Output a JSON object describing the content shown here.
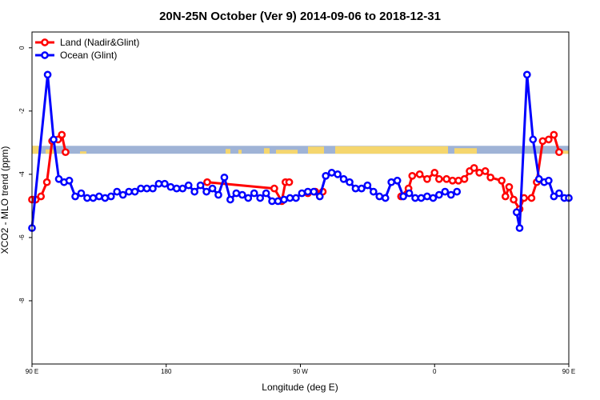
{
  "chart_data": {
    "type": "line",
    "title": "20N-25N October (Ver 9)   2014-09-06 to 2018-12-31",
    "xlabel": "Longitude (deg E)",
    "ylabel": "XCO2 - MLO trend (ppm)",
    "xlim": [
      90,
      450
    ],
    "ylim": [
      -10,
      0.5
    ],
    "x_ticks": [
      {
        "value": 90,
        "label": "90 E"
      },
      {
        "value": 180,
        "label": "180"
      },
      {
        "value": 270,
        "label": "90 W"
      },
      {
        "value": 360,
        "label": "0"
      },
      {
        "value": 450,
        "label": "90 E"
      },
      {
        "value": 540,
        "label": "180"
      }
    ],
    "y_ticks": [
      {
        "value": 0,
        "label": "0"
      },
      {
        "value": -2,
        "label": "-2"
      },
      {
        "value": -4,
        "label": "-4"
      },
      {
        "value": -6,
        "label": "-6"
      },
      {
        "value": -8,
        "label": "-8"
      }
    ],
    "legend_position": "top-left",
    "grid": false,
    "band": {
      "y_from": -3.1,
      "y_to": -3.35,
      "ocean_color": "#9fb3d6",
      "land_color": "#f5d66e"
    },
    "series": [
      {
        "name": "Land (Nadir&Glint)",
        "color": "#ff0000",
        "segments": [
          [
            [
              90,
              -4.8
            ],
            [
              92.5,
              -4.8
            ],
            [
              96,
              -4.7
            ],
            [
              100,
              -4.25
            ],
            [
              103.5,
              -2.95
            ],
            [
              107.5,
              -2.9
            ],
            [
              110,
              -2.75
            ],
            [
              112.5,
              -3.3
            ]
          ],
          [
            [
              207.5,
              -4.25
            ],
            [
              252.5,
              -4.45
            ],
            [
              257.5,
              -4.85
            ],
            [
              260,
              -4.25
            ],
            [
              262.5,
              -4.25
            ]
          ],
          [
            [
              275,
              -4.6
            ],
            [
              280,
              -4.55
            ],
            [
              285,
              -4.55
            ]
          ],
          [
            [
              337.5,
              -4.7
            ],
            [
              342.5,
              -4.45
            ],
            [
              345,
              -4.05
            ],
            [
              350,
              -4.0
            ],
            [
              355,
              -4.15
            ],
            [
              360,
              -3.95
            ],
            [
              363,
              -4.15
            ],
            [
              368,
              -4.15
            ],
            [
              372,
              -4.2
            ],
            [
              376,
              -4.2
            ],
            [
              380,
              -4.15
            ],
            [
              383.5,
              -3.9
            ],
            [
              386.5,
              -3.8
            ],
            [
              390,
              -3.95
            ],
            [
              394,
              -3.9
            ],
            [
              397.5,
              -4.1
            ],
            [
              405,
              -4.2
            ],
            [
              407.5,
              -4.7
            ],
            [
              410,
              -4.4
            ],
            [
              413,
              -4.8
            ],
            [
              417,
              -5.1
            ],
            [
              420,
              -4.75
            ],
            [
              425,
              -4.75
            ],
            [
              428.5,
              -4.25
            ],
            [
              432.5,
              -2.95
            ],
            [
              436.5,
              -2.9
            ],
            [
              440,
              -2.75
            ],
            [
              443.5,
              -3.3
            ]
          ]
        ]
      },
      {
        "name": "Ocean (Glint)",
        "color": "#0000ff",
        "segments": [
          [
            [
              90,
              -5.7
            ],
            [
              100.5,
              -0.85
            ],
            [
              104.5,
              -2.9
            ],
            [
              108,
              -4.15
            ],
            [
              111.5,
              -4.25
            ],
            [
              115,
              -4.2
            ],
            [
              119,
              -4.7
            ],
            [
              123,
              -4.6
            ],
            [
              127,
              -4.75
            ],
            [
              131,
              -4.75
            ],
            [
              135,
              -4.7
            ],
            [
              139,
              -4.75
            ],
            [
              143,
              -4.7
            ],
            [
              147,
              -4.55
            ],
            [
              151,
              -4.65
            ],
            [
              155,
              -4.55
            ],
            [
              159,
              -4.55
            ],
            [
              163,
              -4.45
            ],
            [
              167,
              -4.45
            ],
            [
              171,
              -4.45
            ],
            [
              175,
              -4.3
            ],
            [
              179,
              -4.3
            ],
            [
              183,
              -4.4
            ],
            [
              187,
              -4.45
            ],
            [
              191,
              -4.45
            ],
            [
              195,
              -4.35
            ],
            [
              199,
              -4.55
            ],
            [
              203,
              -4.35
            ],
            [
              207,
              -4.55
            ],
            [
              211,
              -4.45
            ],
            [
              215,
              -4.65
            ],
            [
              219,
              -4.1
            ],
            [
              223,
              -4.8
            ],
            [
              227,
              -4.6
            ],
            [
              231,
              -4.65
            ],
            [
              235,
              -4.75
            ],
            [
              239,
              -4.6
            ],
            [
              243,
              -4.75
            ],
            [
              247,
              -4.6
            ],
            [
              251,
              -4.85
            ],
            [
              255,
              -4.85
            ],
            [
              259,
              -4.8
            ],
            [
              263,
              -4.75
            ],
            [
              267,
              -4.75
            ],
            [
              271,
              -4.6
            ],
            [
              275,
              -4.55
            ],
            [
              279,
              -4.55
            ],
            [
              283,
              -4.7
            ],
            [
              287,
              -4.05
            ],
            [
              291,
              -3.95
            ],
            [
              295,
              -4.0
            ],
            [
              299,
              -4.15
            ],
            [
              303,
              -4.25
            ],
            [
              307,
              -4.45
            ],
            [
              311,
              -4.45
            ],
            [
              315,
              -4.35
            ],
            [
              319,
              -4.55
            ],
            [
              323,
              -4.7
            ],
            [
              327,
              -4.75
            ],
            [
              331,
              -4.25
            ],
            [
              335,
              -4.2
            ],
            [
              339,
              -4.7
            ],
            [
              343,
              -4.6
            ],
            [
              347,
              -4.75
            ],
            [
              351,
              -4.75
            ],
            [
              355,
              -4.7
            ],
            [
              359,
              -4.75
            ],
            [
              363,
              -4.65
            ],
            [
              367,
              -4.55
            ],
            [
              371,
              -4.65
            ],
            [
              375,
              -4.55
            ]
          ],
          [
            [
              415,
              -5.2
            ],
            [
              417,
              -5.7
            ],
            [
              422,
              -0.85
            ],
            [
              426,
              -2.9
            ],
            [
              430,
              -4.15
            ],
            [
              433.5,
              -4.25
            ],
            [
              436.5,
              -4.2
            ],
            [
              440,
              -4.7
            ],
            [
              443.5,
              -4.6
            ],
            [
              447,
              -4.75
            ],
            [
              450,
              -4.75
            ]
          ]
        ]
      }
    ]
  }
}
